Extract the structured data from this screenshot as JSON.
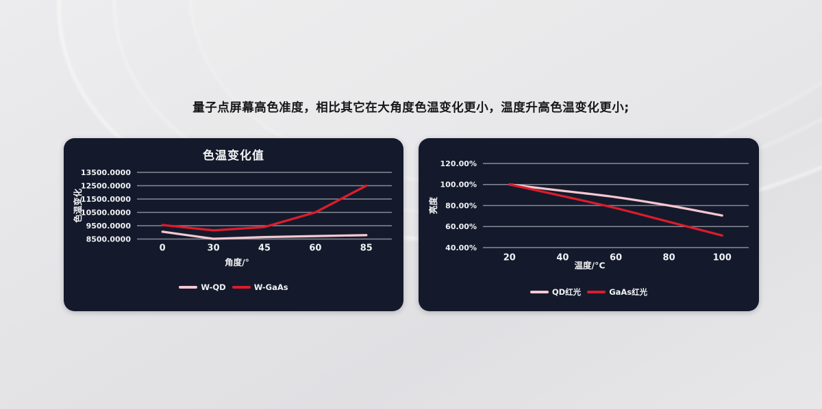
{
  "headline": {
    "text": "量子点屏幕高色准度，相比其它在大角度色温变化更小，温度升高色温变化更小;"
  },
  "colors": {
    "page_bg": "#e5e5e7",
    "panel_bg": "#141a2b",
    "gridline": "#878c97",
    "tick_text": "#f1f2f5",
    "pink": "#f5c8d0",
    "red": "#dd1c2c",
    "headline_text": "#17171a"
  },
  "chart_data": [
    {
      "type": "line",
      "title": "色温变化值",
      "xlabel": "角度/°",
      "ylabel": "色温变化",
      "categories": [
        "0",
        "30",
        "45",
        "60",
        "85"
      ],
      "y_tick_values": [
        13500,
        12500,
        11500,
        10500,
        9500,
        8500
      ],
      "y_tick_labels": [
        "13500.0000",
        "12500.0000",
        "11500.0000",
        "10500.0000",
        "9500.0000",
        "8500.0000"
      ],
      "ylim": [
        8500,
        13500
      ],
      "grid": true,
      "smooth": false,
      "legend_position": "bottom",
      "series": [
        {
          "name": "W-QD",
          "color": "#f5c8d0",
          "values": [
            9050,
            8520,
            8650,
            8720,
            8790
          ]
        },
        {
          "name": "W-GaAs",
          "color": "#dd1c2c",
          "values": [
            9550,
            9150,
            9400,
            10500,
            12500
          ]
        }
      ]
    },
    {
      "type": "line",
      "title": "",
      "xlabel": "温度/°C",
      "ylabel": "亮度",
      "categories": [
        "20",
        "40",
        "60",
        "80",
        "100"
      ],
      "y_tick_values": [
        120,
        100,
        80,
        60,
        40
      ],
      "y_tick_labels": [
        "120.00%",
        "100.00%",
        "80.00%",
        "60.00%",
        "40.00%"
      ],
      "ylim": [
        40,
        120
      ],
      "grid": true,
      "smooth": true,
      "legend_position": "bottom",
      "series": [
        {
          "name": "QD红光",
          "color": "#f5c8d0",
          "values": [
            100,
            94,
            88,
            80,
            70.5
          ]
        },
        {
          "name": "GaAs红光",
          "color": "#dd1c2c",
          "values": [
            100,
            89,
            77.5,
            64.5,
            51.5
          ]
        }
      ]
    }
  ]
}
